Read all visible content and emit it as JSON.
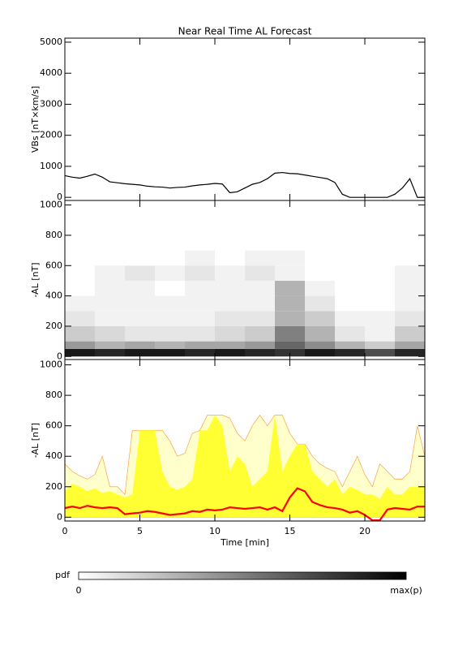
{
  "chart_data": [
    {
      "type": "line",
      "title": "Near Real Time AL Forecast",
      "ylabel": "VBs [nT×km/s]",
      "x": [
        0,
        0.5,
        1,
        1.5,
        2,
        2.5,
        3,
        3.5,
        4,
        4.5,
        5,
        5.5,
        6,
        6.5,
        7,
        7.5,
        8,
        8.5,
        9,
        9.5,
        10,
        10.5,
        11,
        11.5,
        12,
        12.5,
        13,
        13.5,
        14,
        14.5,
        15,
        15.5,
        16,
        16.5,
        17,
        17.5,
        18,
        18.5,
        19,
        19.5,
        20,
        20.5,
        21,
        21.5,
        22,
        22.5,
        23,
        23.5,
        24
      ],
      "series": [
        {
          "color": "#000000",
          "values": [
            700,
            650,
            620,
            680,
            750,
            650,
            500,
            470,
            440,
            420,
            400,
            360,
            340,
            330,
            300,
            320,
            330,
            370,
            400,
            420,
            450,
            430,
            150,
            180,
            300,
            420,
            480,
            600,
            780,
            800,
            770,
            760,
            720,
            680,
            640,
            600,
            480,
            100,
            0,
            0,
            0,
            0,
            0,
            0,
            100,
            300,
            600,
            0,
            0
          ]
        }
      ],
      "xlim": [
        0,
        24
      ],
      "xticks": [
        0,
        5,
        10,
        15,
        20
      ],
      "xtick_labels": false,
      "ylim": [
        -100,
        5130
      ],
      "yticks": [
        0,
        1000,
        2000,
        3000,
        4000,
        5000
      ]
    },
    {
      "type": "heatmap",
      "ylabel": "-AL [nT]",
      "xbins": [
        0,
        2,
        4,
        6,
        8,
        10,
        12,
        14,
        16,
        18,
        20,
        22,
        24
      ],
      "ybins": [
        0,
        50,
        100,
        200,
        300,
        400,
        500,
        600,
        700
      ],
      "p": [
        [
          0.9,
          0.85,
          0.9,
          0.9,
          0.85,
          0.9,
          0.85,
          0.8,
          0.9,
          0.85,
          0.7,
          0.85
        ],
        [
          0.4,
          0.3,
          0.35,
          0.3,
          0.35,
          0.35,
          0.4,
          0.6,
          0.45,
          0.3,
          0.2,
          0.35
        ],
        [
          0.2,
          0.15,
          0.1,
          0.1,
          0.1,
          0.15,
          0.2,
          0.5,
          0.3,
          0.1,
          0.05,
          0.2
        ],
        [
          0.1,
          0.05,
          0.05,
          0.05,
          0.05,
          0.1,
          0.1,
          0.3,
          0.2,
          0.05,
          0.05,
          0.1
        ],
        [
          0.05,
          0.05,
          0.05,
          0.05,
          0.05,
          0.05,
          0.05,
          0.3,
          0.1,
          0,
          0,
          0.05
        ],
        [
          0,
          0.05,
          0.05,
          0,
          0.05,
          0.05,
          0.05,
          0.3,
          0.05,
          0,
          0,
          0.05
        ],
        [
          0,
          0.05,
          0.1,
          0.05,
          0.1,
          0.05,
          0.1,
          0.05,
          0,
          0,
          0,
          0.05
        ],
        [
          0,
          0,
          0,
          0,
          0.05,
          0,
          0.05,
          0.05,
          0,
          0,
          0,
          0
        ]
      ],
      "xlim": [
        0,
        24
      ],
      "xticks": [
        0,
        5,
        10,
        15,
        20
      ],
      "xtick_labels": false,
      "ylim": [
        -20,
        1030
      ],
      "yticks": [
        0,
        200,
        400,
        600,
        800,
        1000
      ]
    },
    {
      "type": "band",
      "ylabel": "-AL [nT]",
      "xlabel": "Time [min]",
      "x": [
        0,
        0.5,
        1,
        1.5,
        2,
        2.5,
        3,
        3.5,
        4,
        4.5,
        5,
        5.5,
        6,
        6.5,
        7,
        7.5,
        8,
        8.5,
        9,
        9.5,
        10,
        10.5,
        11,
        11.5,
        12,
        12.5,
        13,
        13.5,
        14,
        14.5,
        15,
        15.5,
        16,
        16.5,
        17,
        17.5,
        18,
        18.5,
        19,
        19.5,
        20,
        20.5,
        21,
        21.5,
        22,
        22.5,
        23,
        23.5,
        24
      ],
      "series": [
        {
          "color": "#ffffcc",
          "edge": "#ffa040",
          "values": [
            350,
            300,
            270,
            250,
            280,
            400,
            200,
            200,
            150,
            570,
            570,
            570,
            570,
            570,
            500,
            400,
            420,
            550,
            570,
            670,
            670,
            670,
            650,
            550,
            500,
            600,
            670,
            600,
            670,
            670,
            550,
            480,
            480,
            400,
            350,
            320,
            300,
            200,
            300,
            400,
            280,
            200,
            350,
            300,
            250,
            250,
            300,
            600,
            400
          ]
        },
        {
          "color": "#ffff33",
          "values": [
            170,
            220,
            200,
            170,
            190,
            160,
            170,
            150,
            130,
            150,
            570,
            570,
            570,
            300,
            200,
            180,
            200,
            250,
            570,
            570,
            670,
            600,
            300,
            400,
            350,
            200,
            250,
            300,
            670,
            300,
            400,
            480,
            480,
            300,
            250,
            200,
            250,
            150,
            200,
            180,
            150,
            150,
            120,
            200,
            150,
            150,
            200,
            200,
            200
          ]
        },
        {
          "color": "#ff0000",
          "line": true,
          "values": [
            60,
            70,
            60,
            75,
            65,
            60,
            65,
            60,
            20,
            25,
            30,
            40,
            35,
            25,
            15,
            20,
            25,
            40,
            35,
            50,
            45,
            50,
            65,
            60,
            55,
            60,
            65,
            50,
            65,
            40,
            130,
            190,
            170,
            100,
            80,
            65,
            60,
            50,
            30,
            40,
            15,
            -20,
            -20,
            50,
            60,
            55,
            50,
            70,
            70
          ]
        }
      ],
      "xlim": [
        0,
        24
      ],
      "xticks": [
        0,
        5,
        10,
        15,
        20
      ],
      "xtick_labels": true,
      "ylim": [
        -25,
        1035
      ],
      "yticks": [
        0,
        200,
        400,
        600,
        800,
        1000
      ]
    }
  ],
  "colorbar": {
    "label": "pdf",
    "min_label": "0",
    "max_label": "max(p)"
  }
}
